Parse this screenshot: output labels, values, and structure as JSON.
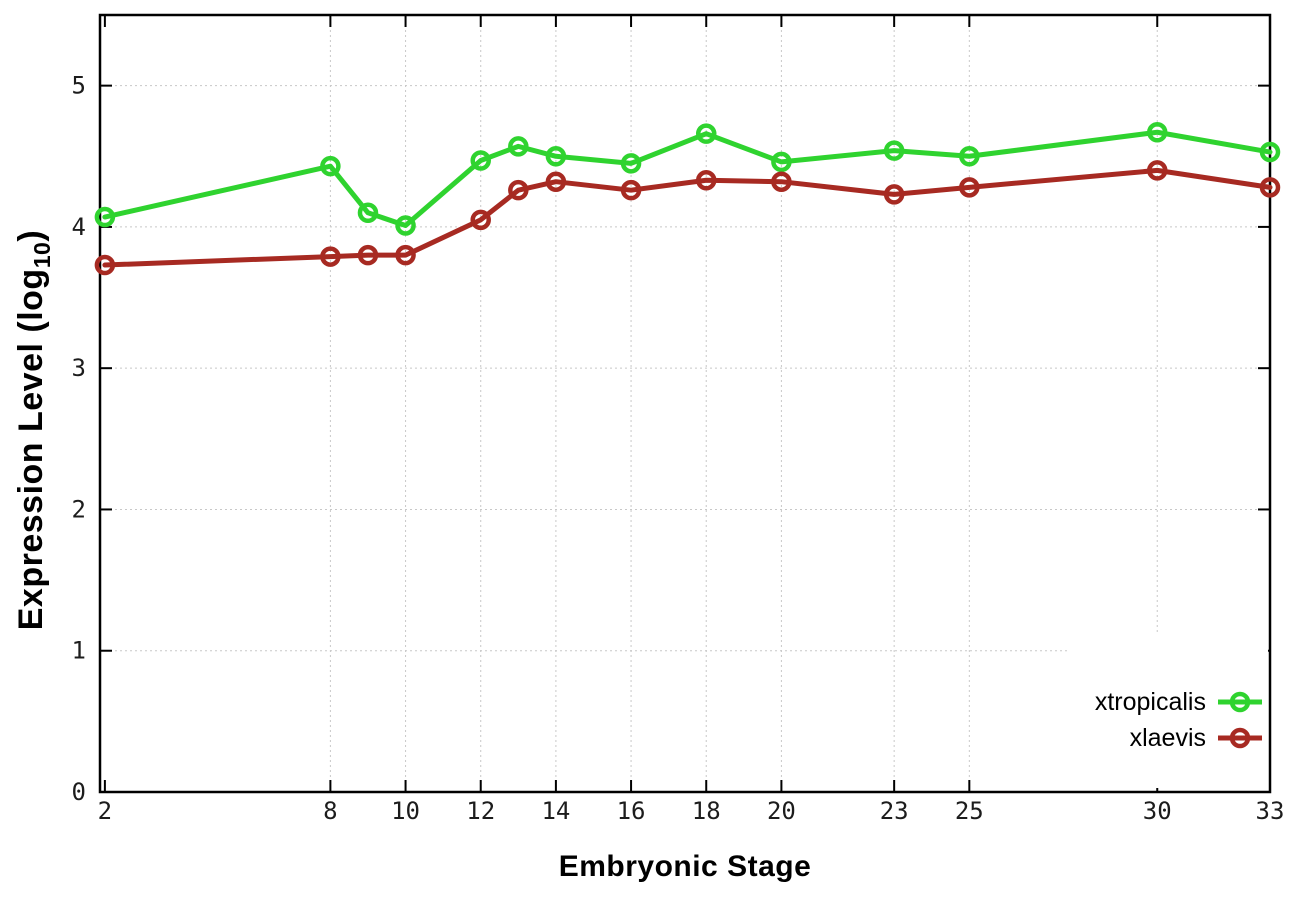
{
  "chart_data": {
    "type": "line",
    "title": "",
    "xlabel": "Embryonic Stage",
    "ylabel": "Expression Level (log10)",
    "ylabel_parts": {
      "main": "Expression Level (log",
      "sub": "10",
      "end": ")"
    },
    "x": [
      2,
      8,
      9,
      10,
      12,
      13,
      14,
      16,
      18,
      20,
      23,
      25,
      30,
      33
    ],
    "series": [
      {
        "name": "xtropicalis",
        "color": "#2fd32f",
        "values": [
          4.07,
          4.43,
          4.1,
          4.01,
          4.47,
          4.57,
          4.5,
          4.45,
          4.66,
          4.46,
          4.54,
          4.5,
          4.67,
          4.53
        ]
      },
      {
        "name": "xlaevis",
        "color": "#a72a22",
        "values": [
          3.73,
          3.79,
          3.8,
          3.8,
          4.05,
          4.26,
          4.32,
          4.26,
          4.33,
          4.32,
          4.23,
          4.28,
          4.4,
          4.28
        ]
      }
    ],
    "xticks": [
      2,
      8,
      10,
      12,
      14,
      16,
      18,
      20,
      23,
      25,
      30,
      33
    ],
    "yticks": [
      0,
      1,
      2,
      3,
      4,
      5
    ],
    "xlim": [
      1.87,
      33
    ],
    "ylim": [
      0,
      5.5
    ],
    "grid": true,
    "legend_position": "bottom-right",
    "legend_entries": [
      "xtropicalis",
      "xlaevis"
    ],
    "bg_color": "#ffffff",
    "axis_color": "#000000",
    "grid_color": "#c8c8c8",
    "tick_label_color": "#1c1c1c"
  }
}
